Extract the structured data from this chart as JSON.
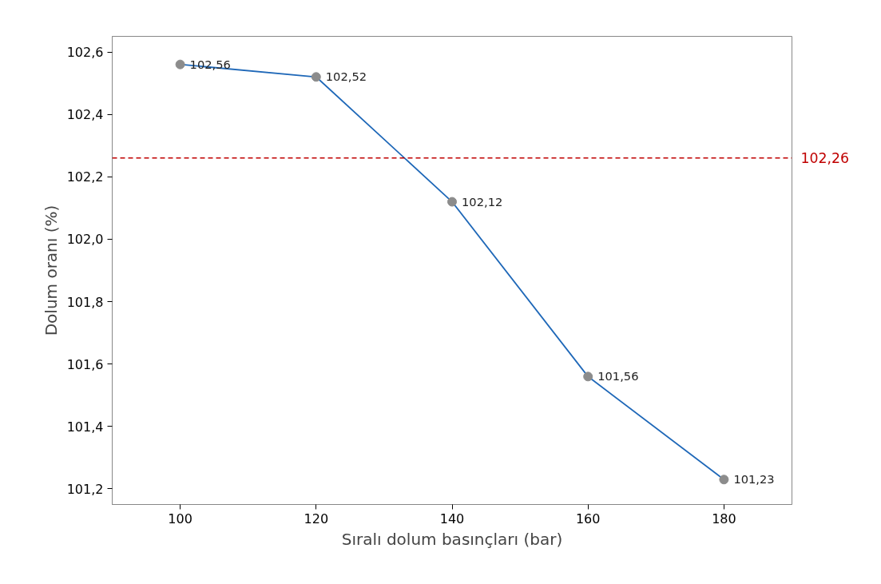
{
  "chart_data": {
    "type": "line",
    "xlabel": "Sıralı dolum basınçları (bar)",
    "ylabel": "Dolum oranı (%)",
    "x": [
      100,
      120,
      140,
      160,
      180
    ],
    "series": [
      {
        "color": "#1f68b8",
        "values": [
          102.56,
          102.52,
          102.12,
          101.56,
          101.23
        ],
        "value_labels": [
          "102,56",
          "102,52",
          "102,12",
          "101,56",
          "101,23"
        ]
      }
    ],
    "marker": "circle",
    "line_style": "solid",
    "xlim": [
      90,
      190
    ],
    "ylim": [
      101.15,
      102.65
    ],
    "xticks": [
      100,
      120,
      140,
      160,
      180
    ],
    "yticks": [
      {
        "value": 101.2,
        "label": "101,2"
      },
      {
        "value": 101.4,
        "label": "101,4"
      },
      {
        "value": 101.6,
        "label": "101,6"
      },
      {
        "value": 101.8,
        "label": "101,8"
      },
      {
        "value": 102.0,
        "label": "102,0"
      },
      {
        "value": 102.2,
        "label": "102,2"
      },
      {
        "value": 102.4,
        "label": "102,4"
      },
      {
        "value": 102.6,
        "label": "102,6"
      }
    ],
    "ref_lines": [
      {
        "axis": "y",
        "value": 102.26,
        "label": "102,26",
        "color": "#c00000",
        "line_style": "dashed"
      }
    ],
    "grid": false
  }
}
